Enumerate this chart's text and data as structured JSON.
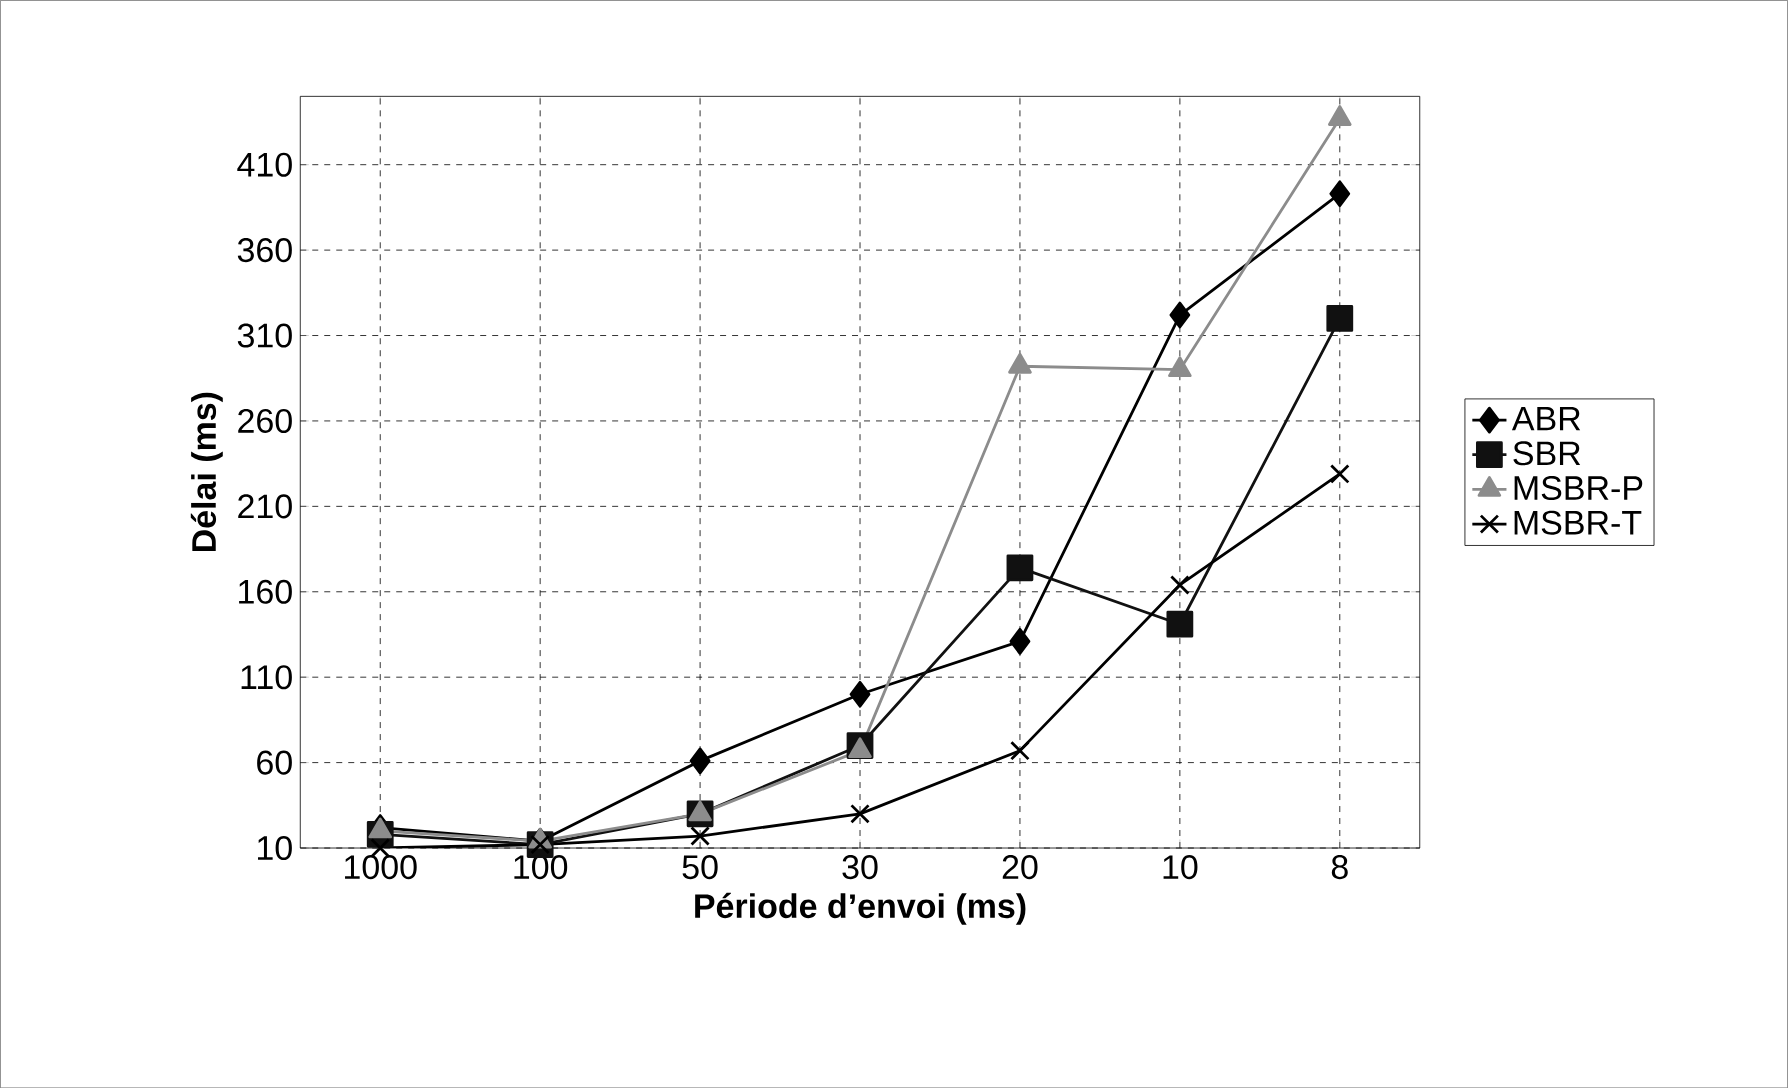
{
  "chart_data": {
    "type": "line",
    "xlabel": "Période d’envoi (ms)",
    "ylabel": "Délai (ms)",
    "categories": [
      "1000",
      "100",
      "50",
      "30",
      "20",
      "10",
      "8"
    ],
    "series": [
      {
        "name": "ABR",
        "color": "#000000",
        "marker": "diamond",
        "values": [
          22,
          14,
          61,
          100,
          131,
          322,
          393
        ]
      },
      {
        "name": "SBR",
        "color": "#111111",
        "marker": "square",
        "values": [
          18,
          12,
          30,
          70,
          174,
          141,
          320
        ]
      },
      {
        "name": "MSBR-P",
        "color": "#8c8c8c",
        "marker": "triangle",
        "values": [
          20,
          14,
          30,
          67,
          292,
          290,
          437
        ]
      },
      {
        "name": "MSBR-T",
        "color": "#000000",
        "marker": "cross",
        "values": [
          10,
          12,
          17,
          30,
          67,
          164,
          229
        ]
      }
    ],
    "ylim": [
      10,
      450
    ],
    "yticks": [
      10,
      60,
      110,
      160,
      210,
      260,
      310,
      360,
      410
    ],
    "grid": true,
    "legend": "right"
  }
}
